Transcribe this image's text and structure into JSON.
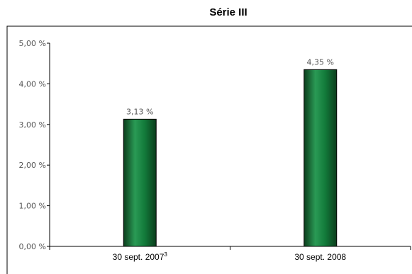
{
  "chart_data": {
    "type": "bar",
    "title": "Série III",
    "xlabel": "",
    "ylabel": "",
    "ylim": [
      0,
      5
    ],
    "yticks": [
      "0,00 %",
      "1,00 %",
      "2,00 %",
      "3,00 %",
      "4,00 %",
      "5,00 %"
    ],
    "ytick_values": [
      0,
      1,
      2,
      3,
      4,
      5
    ],
    "categories": [
      {
        "label": "30 sept. 2007",
        "sup": "3"
      },
      {
        "label": "30 sept. 2008",
        "sup": ""
      }
    ],
    "values": [
      3.13,
      4.35
    ],
    "data_labels": [
      "3,13 %",
      "4,35 %"
    ],
    "grid": false,
    "bar_color": "#127a3a",
    "bar_dark": "#0b3d1c",
    "bar_light": "#2a9a55"
  }
}
